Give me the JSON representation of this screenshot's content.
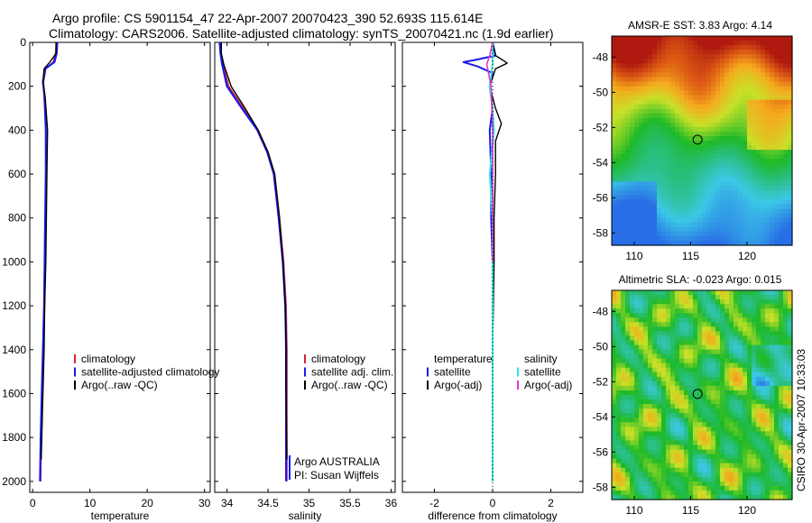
{
  "header": {
    "line1": "Argo profile: CS 5901154_47 22-Apr-2007 20070423_390 52.693S 115.614E",
    "line2": "Climatology: CARS2006. Satellite-adjusted climatology: synTS_20070421.nc (1.9d earlier)"
  },
  "colors": {
    "clim": "#e0242c",
    "sat": "#1a1aee",
    "argo": "#000000",
    "sal_sat": "#33e6e6",
    "sal_argo": "#e633cc"
  },
  "chart_data": [
    {
      "id": "temperature",
      "type": "line",
      "xlabel": "temperature",
      "ylabel": "",
      "xlim": [
        -0.5,
        31
      ],
      "ylim": [
        2050,
        0
      ],
      "xticks": [
        0,
        10,
        20,
        30
      ],
      "yticks": [
        0,
        200,
        400,
        600,
        800,
        1000,
        1200,
        1400,
        1600,
        1800,
        2000
      ],
      "legend": [
        "climatology",
        "satellite-adjusted climatology",
        "Argo(..raw -QC)"
      ],
      "series": [
        {
          "name": "climatology",
          "x": [
            4.1,
            4.0,
            3.6,
            2.3,
            1.9,
            2.0,
            2.3,
            2.4,
            2.3,
            2.2,
            2.1,
            1.9,
            1.7,
            1.5,
            1.4
          ],
          "y": [
            0,
            50,
            90,
            120,
            180,
            250,
            400,
            600,
            800,
            1000,
            1200,
            1400,
            1600,
            1800,
            2000
          ]
        },
        {
          "name": "satellite-adjusted climatology",
          "x": [
            4.3,
            4.2,
            3.8,
            2.2,
            1.8,
            2.1,
            2.3,
            2.3,
            2.2,
            2.1,
            2.0,
            1.8,
            1.6,
            1.4,
            1.3
          ],
          "y": [
            0,
            50,
            90,
            120,
            180,
            250,
            400,
            600,
            800,
            1000,
            1200,
            1400,
            1600,
            1800,
            2000
          ]
        },
        {
          "name": "Argo(..raw -QC)",
          "x": [
            4.1,
            4.1,
            3.0,
            2.0,
            1.8,
            2.2,
            2.6,
            2.5,
            2.4,
            2.3,
            2.1,
            2.0,
            1.8,
            1.6,
            1.5
          ],
          "y": [
            0,
            50,
            90,
            120,
            180,
            250,
            400,
            600,
            800,
            1000,
            1200,
            1400,
            1600,
            1800,
            1900
          ]
        }
      ]
    },
    {
      "id": "salinity",
      "type": "line",
      "xlabel": "salinity",
      "xlim": [
        33.85,
        36.05
      ],
      "ylim": [
        2050,
        0
      ],
      "xticks": [
        34,
        34.5,
        35,
        35.5,
        36
      ],
      "legend": [
        "climatology",
        "satellite adj. clim.",
        "Argo(..raw -QC)"
      ],
      "annotation": [
        "Argo AUSTRALIA",
        "PI: Susan Wijffels"
      ],
      "series": [
        {
          "name": "climatology",
          "x": [
            33.92,
            33.93,
            33.95,
            34.02,
            34.2,
            34.38,
            34.5,
            34.58,
            34.64,
            34.69,
            34.72,
            34.73,
            34.73,
            34.73,
            34.73
          ],
          "y": [
            0,
            50,
            100,
            200,
            300,
            400,
            500,
            600,
            800,
            1000,
            1200,
            1400,
            1600,
            1800,
            2000
          ]
        },
        {
          "name": "satellite adj. clim.",
          "x": [
            33.91,
            33.92,
            33.94,
            34.0,
            34.18,
            34.37,
            34.49,
            34.57,
            34.63,
            34.68,
            34.71,
            34.72,
            34.72,
            34.72,
            34.72
          ],
          "y": [
            0,
            50,
            100,
            200,
            300,
            400,
            500,
            600,
            800,
            1000,
            1200,
            1400,
            1600,
            1800,
            2000
          ]
        },
        {
          "name": "Argo(..raw -QC)",
          "x": [
            33.93,
            33.93,
            33.96,
            34.05,
            34.22,
            34.38,
            34.5,
            34.58,
            34.64,
            34.68,
            34.71,
            34.72,
            34.72,
            34.73
          ],
          "y": [
            0,
            50,
            100,
            200,
            300,
            400,
            500,
            600,
            800,
            1000,
            1200,
            1400,
            1600,
            1900
          ]
        }
      ]
    },
    {
      "id": "difference",
      "type": "line",
      "xlabel": "difference from climatology",
      "xlim": [
        -3.1,
        3.1
      ],
      "ylim": [
        2050,
        0
      ],
      "xticks": [
        -2,
        0,
        2
      ],
      "legend_temperature": [
        "temperature",
        "satellite",
        "Argo(-adj)"
      ],
      "legend_salinity": [
        "salinity",
        "satellite",
        "Argo(-adj)"
      ],
      "series": [
        {
          "name": "temperature satellite",
          "x": [
            0.0,
            0.1,
            -0.6,
            -1.0,
            -0.5,
            0.0,
            -0.1,
            0.0,
            -0.1,
            -0.05,
            -0.05,
            0.0,
            0.0,
            0.0,
            0.0,
            0.0
          ],
          "y": [
            0,
            60,
            80,
            90,
            110,
            140,
            200,
            300,
            400,
            600,
            800,
            1000,
            1200,
            1400,
            1700,
            2000
          ]
        },
        {
          "name": "temperature Argo(-adj)",
          "x": [
            0.0,
            0.1,
            0.4,
            0.5,
            0.1,
            -0.1,
            0.1,
            0.3,
            0.1,
            0.1,
            0.05,
            0.05,
            0.0,
            0.0,
            0.0
          ],
          "y": [
            0,
            60,
            85,
            95,
            120,
            200,
            300,
            370,
            450,
            600,
            800,
            1000,
            1400,
            1800,
            2000
          ]
        },
        {
          "name": "salinity satellite",
          "x": [
            0.0,
            0.0,
            -0.1,
            0.0,
            0.05,
            -0.1,
            0.0,
            0.0,
            0.0,
            0.0,
            0.0
          ],
          "y": [
            0,
            100,
            200,
            300,
            400,
            600,
            800,
            1000,
            1400,
            1800,
            2000
          ]
        },
        {
          "name": "salinity Argo(-adj)",
          "x": [
            0.0,
            -0.1,
            -0.2,
            -0.05,
            0.0,
            0.0,
            0.0
          ],
          "y": [
            0,
            60,
            100,
            200,
            400,
            800,
            1000
          ]
        }
      ]
    },
    {
      "id": "sst-map",
      "type": "heatmap",
      "title": "AMSR-E SST: 3.83 Argo: 4.14",
      "xlim": [
        108,
        124
      ],
      "ylim": [
        -58.7,
        -46.8
      ],
      "xticks": [
        110,
        115,
        120
      ],
      "yticks": [
        -48,
        -50,
        -52,
        -54,
        -56,
        -58
      ],
      "marker": {
        "lon": 115.614,
        "lat": -52.693
      }
    },
    {
      "id": "sla-map",
      "type": "heatmap",
      "title": "Altimetric SLA: -0.023 Argo: 0.015",
      "xlim": [
        108,
        124
      ],
      "ylim": [
        -58.7,
        -46.8
      ],
      "xticks": [
        110,
        115,
        120
      ],
      "yticks": [
        -48,
        -50,
        -52,
        -54,
        -56,
        -58
      ],
      "marker": {
        "lon": 115.614,
        "lat": -52.693
      }
    }
  ],
  "stamp": "CSIRO 30-Apr-2007 10:33:03"
}
